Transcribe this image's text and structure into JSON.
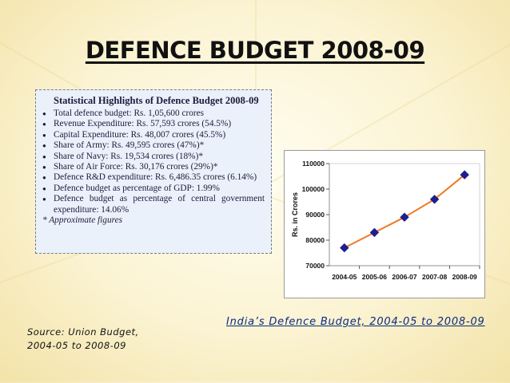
{
  "slide": {
    "title": "DEFENCE BUDGET 2008-09",
    "caption": "India’s Defence Budget, 2004-05 to 2008-09",
    "source": "Source: Union Budget, 2004-05 to 2008-09"
  },
  "highlights": {
    "heading": "Statistical Highlights of Defence Budget 2008-09",
    "items": [
      "Total defence budget: Rs. 1,05,600 crores",
      "Revenue Expenditure: Rs. 57,593 crores (54.5%)",
      "Capital Expenditure: Rs. 48,007 crores (45.5%)",
      "Share of Army: Rs. 49,595 crores (47%)*",
      "Share of Navy: Rs. 19,534 crores (18%)*",
      "Share of Air Force: Rs. 30,176 crores (29%)*",
      "Defence R&D expenditure: Rs. 6,486.35 crores (6.14%)",
      "Defence budget as percentage of GDP: 1.99%",
      "Defence budget as percentage of central government expenditure: 14.06%"
    ],
    "note": "* Approximate figures"
  },
  "colors": {
    "line": "#f07a22",
    "marker": "#1e1e8c",
    "caption": "#0a2a80"
  },
  "chart_data": {
    "type": "line",
    "categories": [
      "2004-05",
      "2005-06",
      "2006-07",
      "2007-08",
      "2008-09"
    ],
    "values": [
      77000,
      83000,
      89000,
      96000,
      105600
    ],
    "ylabel": "Rs. in Crores",
    "xlabel": "",
    "ylim": [
      70000,
      110000
    ],
    "yticks": [
      "70000",
      "80000",
      "90000",
      "100000",
      "110000"
    ],
    "grid": false,
    "legend": "none"
  }
}
